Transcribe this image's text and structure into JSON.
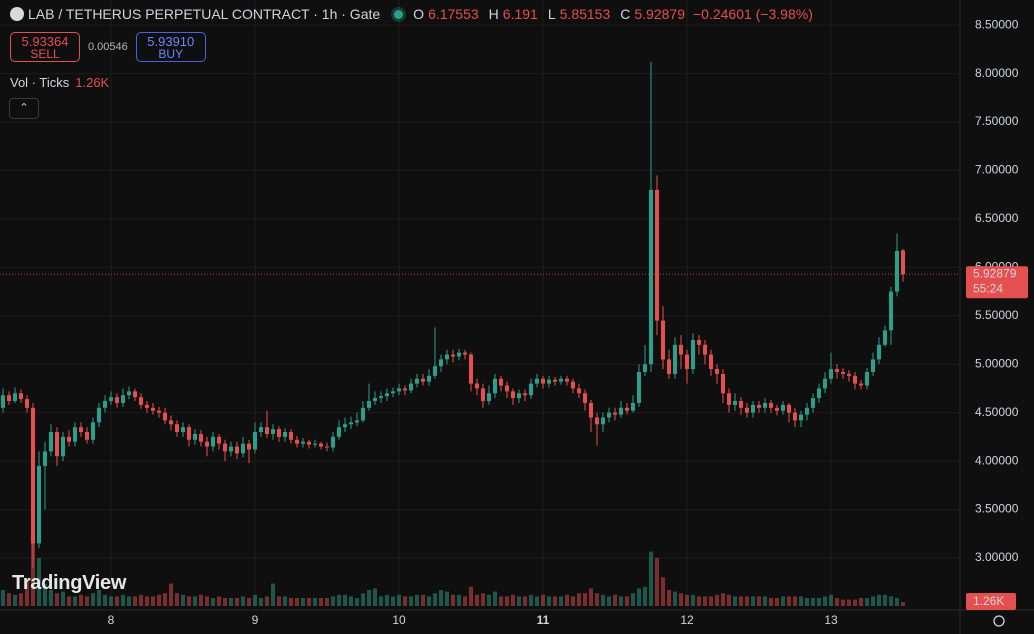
{
  "chart_data": {
    "type": "candlestick",
    "title": "LAB / TETHERUS PERPETUAL CONTRACT · 1h · Gate",
    "ohlc_labels": [
      "O",
      "H",
      "L",
      "C"
    ],
    "change": "−0.24601 (−3.98%)",
    "sell_price": "5.93364",
    "sell_label": "SELL",
    "spread": "0.00546",
    "buy_price": "5.93910",
    "buy_label": "BUY",
    "volume_title": "Vol · Ticks",
    "volume_label": "1.26K",
    "countdown": "55:24",
    "watermark": "TradingView",
    "colors": {
      "up": "#2e9e8a",
      "down": "#e3504f"
    },
    "grid": true,
    "ylim": [
      2.7,
      8.75
    ],
    "yticks": [
      {
        "value": 3,
        "label": "3.00000"
      },
      {
        "value": 3.5,
        "label": "3.50000"
      },
      {
        "value": 4,
        "label": "4.00000"
      },
      {
        "value": 4.5,
        "label": "4.50000"
      },
      {
        "value": 5,
        "label": "5.00000"
      },
      {
        "value": 5.5,
        "label": "5.50000"
      },
      {
        "value": 6,
        "label": "6.00000"
      },
      {
        "value": 6.5,
        "label": "6.50000"
      },
      {
        "value": 7,
        "label": "7.00000"
      },
      {
        "value": 7.5,
        "label": "7.50000"
      },
      {
        "value": 8,
        "label": "8.00000"
      },
      {
        "value": 8.5,
        "label": "8.50000"
      }
    ],
    "xlim": [
      -0.5,
      159.5
    ],
    "xticks": [
      {
        "value": 18,
        "label": "8"
      },
      {
        "value": 42,
        "label": "9"
      },
      {
        "value": 66,
        "label": "10"
      },
      {
        "value": 90,
        "label": "11"
      },
      {
        "value": 114,
        "label": "12"
      },
      {
        "value": 138,
        "label": "13"
      }
    ],
    "volume_ylim": [
      0,
      25000
    ],
    "open": [
      4.55,
      4.68,
      4.62,
      4.7,
      4.64,
      4.55,
      3.15,
      3.95,
      4.1,
      4.3,
      4.05,
      4.25,
      4.2,
      4.35,
      4.3,
      4.22,
      4.4,
      4.55,
      4.62,
      4.66,
      4.6,
      4.68,
      4.72,
      4.66,
      4.58,
      4.55,
      4.52,
      4.5,
      4.42,
      4.38,
      4.3,
      4.35,
      4.22,
      4.28,
      4.2,
      4.15,
      4.25,
      4.18,
      4.1,
      4.15,
      4.08,
      4.18,
      4.12,
      4.3,
      4.35,
      4.28,
      4.33,
      4.25,
      4.3,
      4.22,
      4.18,
      4.2,
      4.17,
      4.18,
      4.15,
      4.14,
      4.25,
      4.35,
      4.38,
      4.4,
      4.42,
      4.55,
      4.62,
      4.65,
      4.67,
      4.7,
      4.72,
      4.75,
      4.73,
      4.8,
      4.85,
      4.82,
      4.88,
      4.98,
      5.05,
      5.1,
      5.08,
      5.12,
      5.1,
      4.8,
      4.75,
      4.62,
      4.7,
      4.85,
      4.78,
      4.72,
      4.65,
      4.7,
      4.68,
      4.8,
      4.85,
      4.8,
      4.84,
      4.82,
      4.85,
      4.82,
      4.75,
      4.7,
      4.6,
      4.45,
      4.38,
      4.45,
      4.5,
      4.48,
      4.55,
      4.52,
      4.6,
      4.92,
      5.0,
      6.8,
      5.45,
      5.05,
      4.9,
      5.2,
      5.1,
      4.95,
      5.25,
      5.2,
      5.1,
      4.95,
      4.9,
      4.7,
      4.58,
      4.62,
      4.55,
      4.5,
      4.58,
      4.55,
      4.6,
      4.55,
      4.52,
      4.58,
      4.5,
      4.42,
      4.48,
      4.55,
      4.65,
      4.75,
      4.85,
      4.95,
      4.92,
      4.9,
      4.88,
      4.8,
      4.78,
      4.92,
      5.05,
      5.2,
      5.35,
      5.75,
      6.17553
    ],
    "high": [
      4.75,
      4.72,
      4.76,
      4.74,
      4.68,
      4.6,
      4.1,
      4.2,
      4.38,
      4.35,
      4.3,
      4.32,
      4.4,
      4.4,
      4.35,
      4.45,
      4.6,
      4.68,
      4.72,
      4.7,
      4.75,
      4.77,
      4.75,
      4.7,
      4.62,
      4.6,
      4.56,
      4.55,
      4.47,
      4.42,
      4.4,
      4.38,
      4.33,
      4.32,
      4.25,
      4.3,
      4.28,
      4.22,
      4.2,
      4.2,
      4.25,
      4.22,
      4.4,
      4.4,
      4.52,
      4.38,
      4.36,
      4.34,
      4.33,
      4.26,
      4.24,
      4.22,
      4.22,
      4.2,
      4.19,
      4.3,
      4.42,
      4.45,
      4.46,
      4.5,
      4.62,
      4.8,
      4.72,
      4.72,
      4.75,
      4.76,
      4.8,
      4.78,
      4.85,
      4.9,
      4.9,
      4.95,
      5.38,
      5.1,
      5.15,
      5.15,
      5.16,
      5.15,
      5.12,
      4.85,
      4.8,
      4.78,
      4.9,
      4.88,
      4.82,
      4.75,
      4.74,
      4.74,
      4.85,
      4.9,
      4.88,
      4.88,
      4.87,
      4.88,
      4.88,
      4.85,
      4.8,
      4.74,
      4.63,
      4.5,
      4.5,
      4.55,
      4.55,
      4.62,
      4.6,
      4.68,
      5.0,
      5.2,
      8.12,
      6.95,
      5.6,
      5.15,
      5.28,
      5.3,
      5.15,
      5.32,
      5.3,
      5.25,
      5.15,
      5.0,
      4.95,
      4.75,
      4.7,
      4.66,
      4.6,
      4.62,
      4.62,
      4.65,
      4.63,
      4.58,
      4.62,
      4.6,
      4.55,
      4.52,
      4.6,
      4.7,
      4.8,
      4.92,
      5.12,
      5.0,
      4.96,
      4.94,
      4.92,
      4.84,
      4.96,
      5.12,
      5.28,
      5.4,
      5.8,
      6.35,
      6.191
    ],
    "low": [
      4.5,
      4.58,
      4.6,
      4.6,
      4.5,
      2.9,
      3.1,
      3.5,
      4.05,
      3.95,
      4.0,
      4.15,
      4.15,
      4.25,
      4.18,
      4.18,
      4.35,
      4.5,
      4.58,
      4.55,
      4.56,
      4.64,
      4.62,
      4.54,
      4.5,
      4.48,
      4.45,
      4.38,
      4.32,
      4.25,
      4.25,
      4.15,
      4.17,
      4.15,
      4.05,
      4.1,
      4.12,
      4.0,
      4.05,
      4.02,
      4.04,
      3.98,
      4.08,
      4.25,
      4.24,
      4.22,
      4.2,
      4.2,
      4.18,
      4.14,
      4.14,
      4.13,
      4.14,
      4.12,
      4.1,
      4.1,
      4.22,
      4.3,
      4.33,
      4.36,
      4.4,
      4.52,
      4.58,
      4.6,
      4.62,
      4.66,
      4.68,
      4.68,
      4.7,
      4.76,
      4.78,
      4.78,
      4.85,
      4.92,
      5.0,
      5.02,
      5.04,
      5.05,
      4.72,
      4.68,
      4.55,
      4.58,
      4.65,
      4.72,
      4.65,
      4.58,
      4.6,
      4.62,
      4.64,
      4.76,
      4.75,
      4.76,
      4.78,
      4.79,
      4.78,
      4.7,
      4.65,
      4.52,
      4.3,
      4.16,
      4.3,
      4.4,
      4.42,
      4.45,
      4.48,
      4.5,
      4.56,
      4.88,
      4.92,
      5.3,
      4.95,
      4.85,
      4.85,
      4.95,
      4.8,
      4.9,
      5.1,
      5.0,
      4.88,
      4.8,
      4.6,
      4.5,
      4.52,
      4.48,
      4.45,
      4.45,
      4.5,
      4.5,
      4.5,
      4.47,
      4.48,
      4.4,
      4.35,
      4.35,
      4.42,
      4.5,
      4.6,
      4.7,
      4.8,
      4.85,
      4.85,
      4.82,
      4.74,
      4.74,
      4.74,
      4.88,
      5.0,
      5.18,
      5.2,
      5.7,
      5.85153
    ],
    "close": [
      4.68,
      4.62,
      4.7,
      4.64,
      4.55,
      3.15,
      3.95,
      4.1,
      4.3,
      4.05,
      4.25,
      4.2,
      4.35,
      4.3,
      4.22,
      4.4,
      4.55,
      4.62,
      4.66,
      4.6,
      4.68,
      4.72,
      4.66,
      4.58,
      4.55,
      4.52,
      4.5,
      4.42,
      4.38,
      4.3,
      4.35,
      4.22,
      4.28,
      4.2,
      4.15,
      4.25,
      4.18,
      4.1,
      4.15,
      4.08,
      4.18,
      4.12,
      4.3,
      4.35,
      4.28,
      4.33,
      4.25,
      4.3,
      4.22,
      4.18,
      4.2,
      4.17,
      4.18,
      4.15,
      4.14,
      4.25,
      4.35,
      4.38,
      4.4,
      4.42,
      4.55,
      4.62,
      4.65,
      4.67,
      4.7,
      4.72,
      4.75,
      4.73,
      4.8,
      4.85,
      4.82,
      4.88,
      4.98,
      5.05,
      5.1,
      5.08,
      5.12,
      5.1,
      4.8,
      4.75,
      4.62,
      4.7,
      4.85,
      4.78,
      4.72,
      4.65,
      4.7,
      4.68,
      4.8,
      4.85,
      4.8,
      4.84,
      4.82,
      4.85,
      4.82,
      4.75,
      4.7,
      4.6,
      4.45,
      4.38,
      4.45,
      4.5,
      4.48,
      4.55,
      4.52,
      4.6,
      4.92,
      5.0,
      6.8,
      5.45,
      5.05,
      4.9,
      5.2,
      5.1,
      4.95,
      5.25,
      5.2,
      5.1,
      4.95,
      4.9,
      4.7,
      4.58,
      4.62,
      4.55,
      4.5,
      4.58,
      4.55,
      4.6,
      4.55,
      4.52,
      4.58,
      4.5,
      4.42,
      4.48,
      4.55,
      4.65,
      4.75,
      4.85,
      4.95,
      4.92,
      4.9,
      4.88,
      4.8,
      4.78,
      4.92,
      5.05,
      5.2,
      5.35,
      5.75,
      6.17,
      5.92879
    ],
    "volume": [
      5000,
      4000,
      3500,
      4000,
      8000,
      22000,
      15000,
      7000,
      5000,
      4000,
      4500,
      3000,
      3000,
      3500,
      3000,
      4000,
      5000,
      3500,
      3000,
      3000,
      3500,
      3000,
      3000,
      3500,
      3000,
      3000,
      3500,
      4000,
      7000,
      4000,
      3500,
      3000,
      3000,
      3500,
      3000,
      2500,
      3000,
      2500,
      2500,
      2500,
      3000,
      2500,
      3500,
      2500,
      3000,
      7000,
      3000,
      3000,
      2500,
      2500,
      2500,
      2500,
      2500,
      2500,
      2500,
      3000,
      3500,
      3500,
      3000,
      2500,
      4000,
      5000,
      5500,
      3000,
      3500,
      3000,
      3500,
      3000,
      3000,
      3500,
      3500,
      3000,
      4000,
      5000,
      4500,
      3500,
      3500,
      3000,
      6000,
      3500,
      4000,
      3500,
      4500,
      3000,
      3000,
      3500,
      3000,
      3000,
      3500,
      3000,
      3500,
      3000,
      3000,
      3000,
      3500,
      3000,
      4000,
      4000,
      5500,
      4000,
      3500,
      3000,
      3500,
      3000,
      3000,
      4000,
      5500,
      6000,
      17000,
      15000,
      9000,
      5000,
      4500,
      4000,
      3500,
      3500,
      3000,
      3000,
      3000,
      3500,
      4000,
      3500,
      3000,
      3000,
      3000,
      3000,
      3000,
      3000,
      2500,
      2500,
      3000,
      3000,
      3000,
      3000,
      2500,
      2500,
      2500,
      3000,
      3500,
      2500,
      2000,
      2000,
      2000,
      2500,
      2500,
      3000,
      3500,
      3500,
      3000,
      2500,
      1260
    ]
  }
}
